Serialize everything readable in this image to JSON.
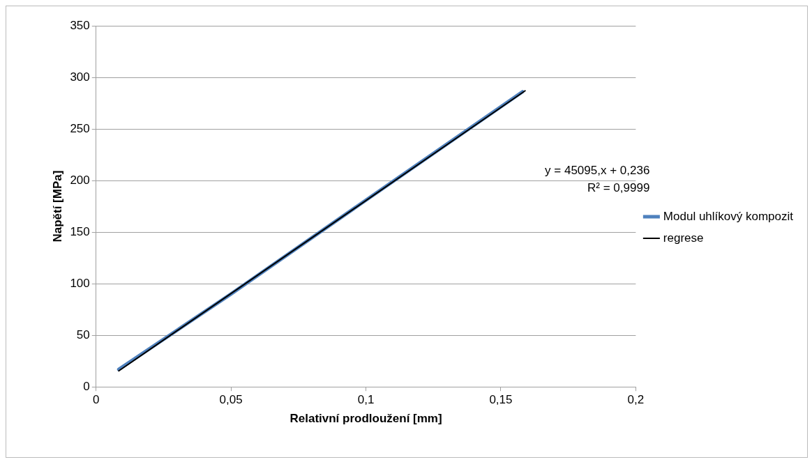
{
  "chart_data": {
    "type": "line",
    "xlabel": "Relativní prodloužení [mm]",
    "ylabel": "Napětí [MPa]",
    "xlim": [
      0,
      0.2
    ],
    "xticks": [
      {
        "value": 0,
        "label": "0"
      },
      {
        "value": 0.05,
        "label": "0,05"
      },
      {
        "value": 0.1,
        "label": "0,1"
      },
      {
        "value": 0.15,
        "label": "0,15"
      },
      {
        "value": 0.2,
        "label": "0,2"
      }
    ],
    "ylim": [
      0,
      350
    ],
    "yticks": [
      0,
      50,
      100,
      150,
      200,
      250,
      300,
      350
    ],
    "grid": "y",
    "legend": "right",
    "marker": "none",
    "series": [
      {
        "name": "Modul uhlíkový kompozit",
        "color": "#4f81bd",
        "x": [
          0.0084,
          0.05,
          0.1,
          0.158
        ],
        "values": [
          17,
          90,
          181,
          286
        ]
      },
      {
        "name": "regrese",
        "color": "#000000",
        "x": [
          0.0084,
          0.159
        ],
        "values": [
          15.5,
          287
        ]
      }
    ],
    "annotations": [
      "y = 45095,x + 0,236",
      "R² = 0,9999"
    ]
  }
}
